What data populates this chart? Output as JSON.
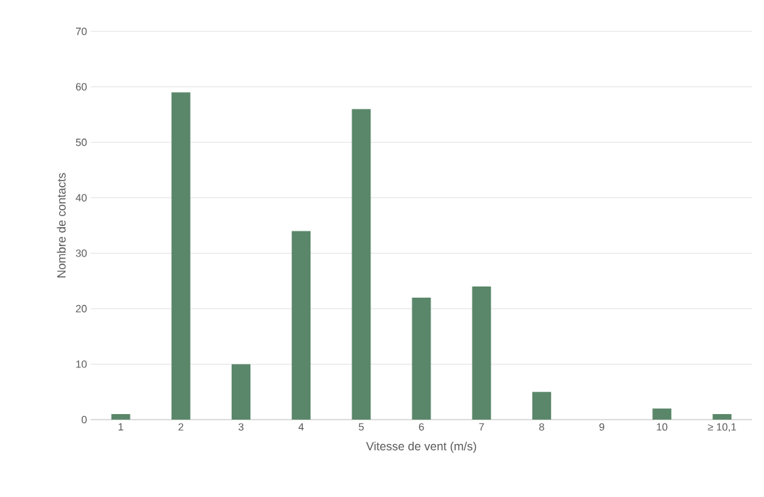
{
  "chart_data": {
    "type": "bar",
    "xlabel": "Vitesse de vent (m/s)",
    "ylabel": "Nombre de contacts",
    "categories": [
      "1",
      "2",
      "3",
      "4",
      "5",
      "6",
      "7",
      "8",
      "9",
      "10",
      "≥ 10,1"
    ],
    "values": [
      1,
      59,
      10,
      34,
      56,
      22,
      24,
      5,
      0,
      2,
      1
    ],
    "color": "#5a876a",
    "ylim": [
      0,
      70
    ],
    "yticks": [
      0,
      10,
      20,
      30,
      40,
      50,
      60,
      70
    ],
    "grid": "y"
  }
}
